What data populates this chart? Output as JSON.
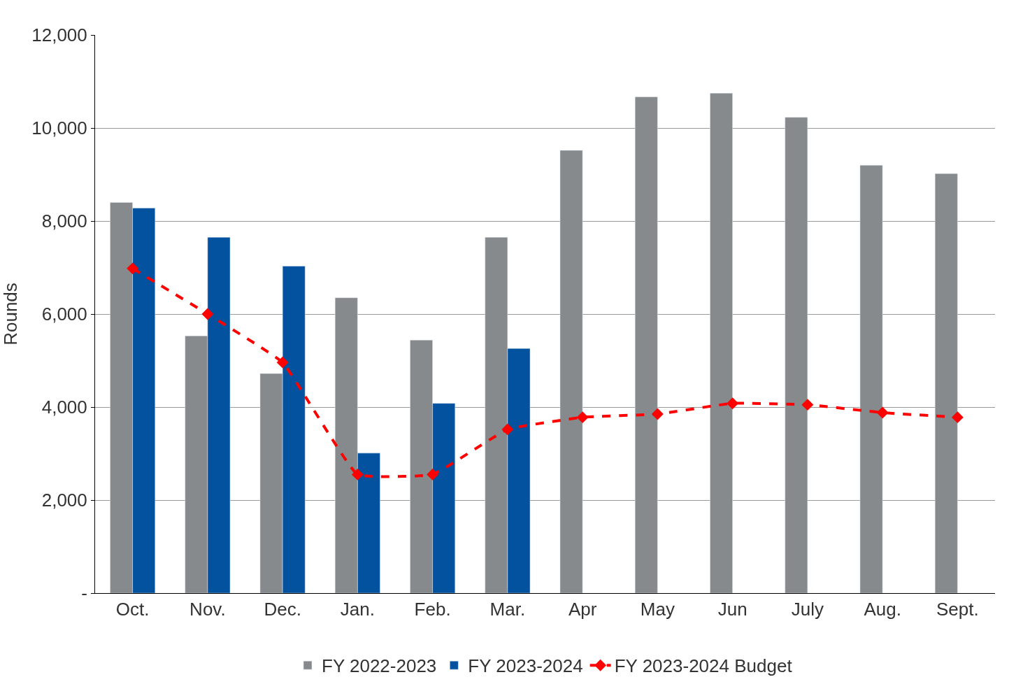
{
  "chart_data": {
    "type": "bar",
    "ylabel": "Rounds",
    "categories": [
      "Oct.",
      "Nov.",
      "Dec.",
      "Jan.",
      "Feb.",
      "Mar.",
      "Apr",
      "May",
      "Jun",
      "July",
      "Aug.",
      "Sept."
    ],
    "series": [
      {
        "name": "FY 2022-2023",
        "color": "#868a8d",
        "values": [
          8400,
          5530,
          4720,
          6350,
          5440,
          7650,
          9520,
          10670,
          10750,
          10230,
          9200,
          9020
        ]
      },
      {
        "name": "FY 2023-2024",
        "color": "#03529f",
        "values": [
          8280,
          7650,
          7030,
          3010,
          4080,
          5260,
          null,
          null,
          null,
          null,
          null,
          null
        ]
      },
      {
        "name": "FY 2023-2024 Budget",
        "type": "line",
        "color": "#ff0000",
        "line_style": "dashed",
        "marker": "diamond",
        "values": [
          6980,
          6000,
          4960,
          2550,
          2550,
          3520,
          3780,
          3850,
          4080,
          4050,
          3880,
          3780
        ]
      }
    ],
    "ylim": [
      0,
      12000
    ],
    "yticks": [
      {
        "value": 0,
        "label": "-"
      },
      {
        "value": 2000,
        "label": "2,000"
      },
      {
        "value": 4000,
        "label": "4,000"
      },
      {
        "value": 6000,
        "label": "6,000"
      },
      {
        "value": 8000,
        "label": "8,000"
      },
      {
        "value": 10000,
        "label": "10,000"
      },
      {
        "value": 12000,
        "label": "12,000"
      }
    ],
    "grid": "y",
    "legend": "bottom"
  }
}
